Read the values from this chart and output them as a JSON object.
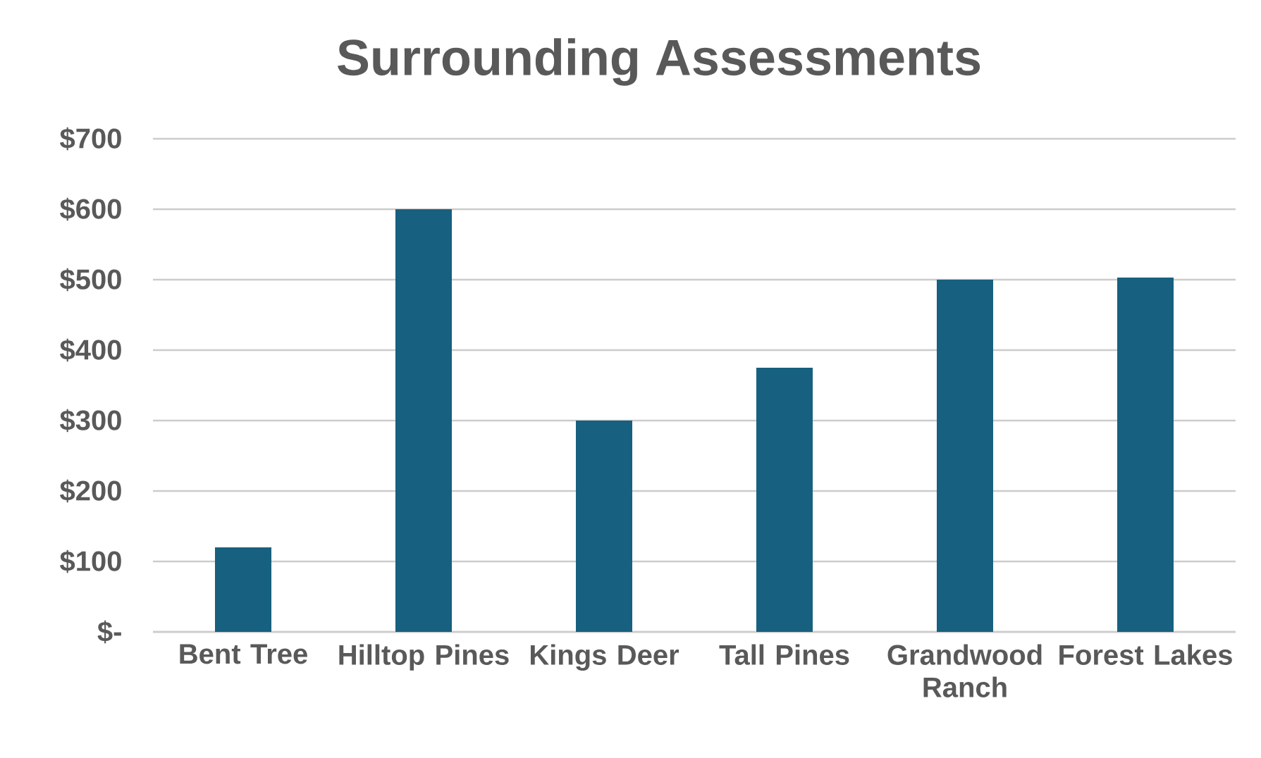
{
  "chart_data": {
    "type": "bar",
    "title": "Surrounding Assessments",
    "categories": [
      "Bent Tree",
      "Hilltop Pines",
      "Kings Deer",
      "Tall Pines",
      "Grandwood Ranch",
      "Forest Lakes"
    ],
    "values": [
      120,
      600,
      300,
      375,
      500,
      503
    ],
    "color": "#17607f",
    "ylim": [
      0,
      700
    ],
    "yticks": [
      {
        "value": 0,
        "label": "$-"
      },
      {
        "value": 100,
        "label": "$100"
      },
      {
        "value": 200,
        "label": "$200"
      },
      {
        "value": 300,
        "label": "$300"
      },
      {
        "value": 400,
        "label": "$400"
      },
      {
        "value": 500,
        "label": "$500"
      },
      {
        "value": 600,
        "label": "$600"
      },
      {
        "value": 700,
        "label": "$700"
      }
    ],
    "grid": "y"
  }
}
